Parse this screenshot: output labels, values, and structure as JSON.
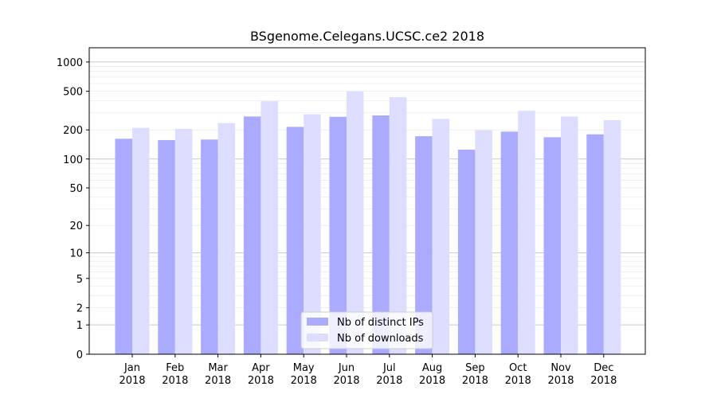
{
  "chart_data": {
    "type": "bar",
    "title": "BSgenome.Celegans.UCSC.ce2 2018",
    "xlabel": "",
    "ylabel": "",
    "categories": [
      "Jan\n2018",
      "Feb\n2018",
      "Mar\n2018",
      "Apr\n2018",
      "May\n2018",
      "Jun\n2018",
      "Jul\n2018",
      "Aug\n2018",
      "Sep\n2018",
      "Oct\n2018",
      "Nov\n2018",
      "Dec\n2018"
    ],
    "series": [
      {
        "name": "Nb of distinct IPs",
        "color": "#aaaaff",
        "values": [
          162,
          157,
          159,
          275,
          215,
          273,
          282,
          172,
          125,
          192,
          168,
          180
        ]
      },
      {
        "name": "Nb of downloads",
        "color": "#ddddff",
        "values": [
          210,
          205,
          235,
          395,
          290,
          500,
          435,
          260,
          198,
          315,
          275,
          252
        ]
      }
    ],
    "yscale": "log1p",
    "yticks": [
      0,
      1,
      2,
      5,
      10,
      20,
      50,
      100,
      200,
      500,
      1000
    ],
    "ylim": [
      0,
      1400
    ],
    "grid": true,
    "legend_position": "bottom-center"
  }
}
